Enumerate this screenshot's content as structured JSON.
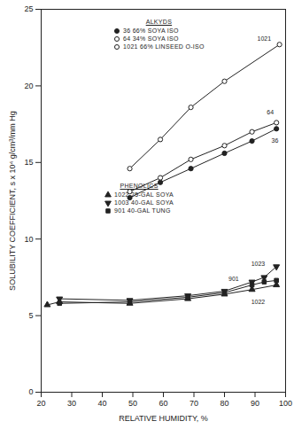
{
  "chart_data": {
    "type": "line",
    "xlabel": "RELATIVE HUMIDITY, %",
    "ylabel": "SOLUBILITY COEFFICIENT, s x 10⁴ g/cm³/mm Hg",
    "xlim": [
      20,
      100
    ],
    "xticks": [
      20,
      30,
      40,
      50,
      60,
      70,
      80,
      90,
      100
    ],
    "ylim": [
      0,
      25
    ],
    "yticks": [
      0,
      5,
      10,
      15,
      20,
      25
    ],
    "grid": false,
    "series": [
      {
        "name": "36  66% SOYA ISO",
        "group": "ALKYDS",
        "color": "#222222",
        "marker": "circle",
        "x": [
          49,
          59,
          69,
          80,
          89,
          97
        ],
        "values": [
          12.7,
          13.7,
          14.6,
          15.6,
          16.4,
          17.2
        ]
      },
      {
        "name": "64  34% SOYA ISO",
        "group": "ALKYDS",
        "color": "#222222",
        "marker": "circle-open",
        "x": [
          49,
          59,
          69,
          80,
          89,
          97
        ],
        "values": [
          13.1,
          14.0,
          15.2,
          16.1,
          17.0,
          17.6
        ]
      },
      {
        "name": "1021  66% LINSEED O-ISO",
        "group": "ALKYDS",
        "color": "#222222",
        "marker": "circle-open",
        "x": [
          49,
          59,
          69,
          80,
          98
        ],
        "values": [
          14.6,
          16.5,
          18.6,
          20.3,
          22.7
        ]
      },
      {
        "name": "1022  25-GAL SOYA",
        "group": "PHENOLICS",
        "color": "#222222",
        "marker": "triangle",
        "x": [
          22,
          26,
          49,
          68,
          80,
          89,
          97
        ],
        "values": [
          5.7,
          5.9,
          5.8,
          6.1,
          6.4,
          6.7,
          7.0
        ]
      },
      {
        "name": "1003  40-GAL SOYA",
        "group": "PHENOLICS",
        "color": "#222222",
        "marker": "triangle-down",
        "x": [
          26,
          49,
          68,
          80,
          89,
          93,
          97
        ],
        "values": [
          6.1,
          6.0,
          6.3,
          6.6,
          7.2,
          7.5,
          8.2
        ]
      },
      {
        "name": "901  40-GAL TUNG",
        "group": "PHENOLICS",
        "color": "#222222",
        "marker": "square",
        "x": [
          26,
          49,
          68,
          80,
          89,
          93,
          97
        ],
        "values": [
          5.8,
          5.9,
          6.2,
          6.5,
          7.0,
          7.2,
          7.3
        ]
      }
    ],
    "annotations": [
      {
        "text": "1021",
        "x": 93,
        "y": 23.1
      },
      {
        "text": "64",
        "x": 95,
        "y": 18.3
      },
      {
        "text": "36",
        "x": 96.5,
        "y": 16.4
      },
      {
        "text": "1023",
        "x": 91,
        "y": 8.4
      },
      {
        "text": "901",
        "x": 83,
        "y": 7.4
      },
      {
        "text": "1022",
        "x": 91,
        "y": 5.9
      }
    ]
  }
}
